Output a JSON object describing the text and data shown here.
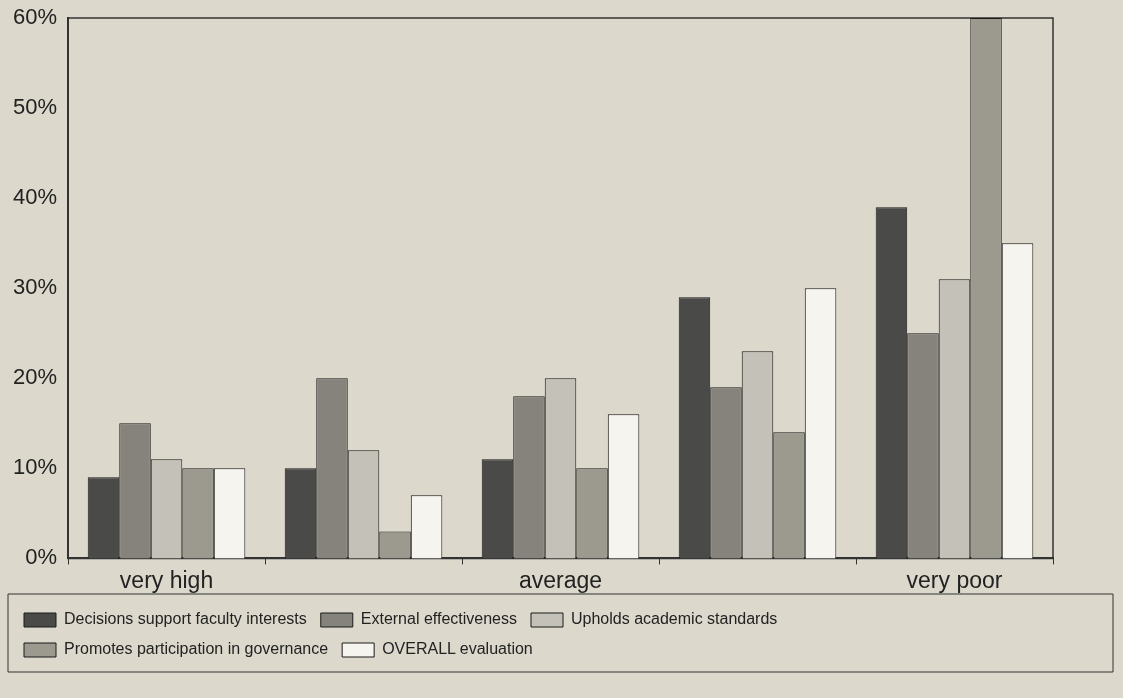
{
  "chart_data": {
    "type": "bar",
    "categories": [
      "very high",
      null,
      "average",
      null,
      "very poor"
    ],
    "series": [
      {
        "name": "Decisions support faculty interests",
        "color": "#4a4a48",
        "values": [
          9,
          10,
          11,
          29,
          39
        ]
      },
      {
        "name": "External effectiveness",
        "color": "#85837c",
        "values": [
          15,
          20,
          18,
          19,
          25
        ]
      },
      {
        "name": "Upholds academic standards",
        "color": "#c4c1b8",
        "values": [
          11,
          12,
          20,
          23,
          31
        ]
      },
      {
        "name": "Promotes participation in governance",
        "color": "#9c998f",
        "values": [
          10,
          3,
          10,
          14,
          60
        ]
      },
      {
        "name": "OVERALL evaluation",
        "color": "#f6f4ee",
        "values": [
          10,
          7,
          16,
          30,
          35
        ]
      }
    ],
    "ylim": [
      0,
      60
    ],
    "yticks": [
      {
        "value": 0,
        "label": "0%"
      },
      {
        "value": 10,
        "label": "10%"
      },
      {
        "value": 20,
        "label": "20%"
      },
      {
        "value": 30,
        "label": "30%"
      },
      {
        "value": 40,
        "label": "40%"
      },
      {
        "value": 50,
        "label": "50%"
      },
      {
        "value": 60,
        "label": "60%"
      }
    ],
    "grid": false,
    "legend": "bottom"
  }
}
